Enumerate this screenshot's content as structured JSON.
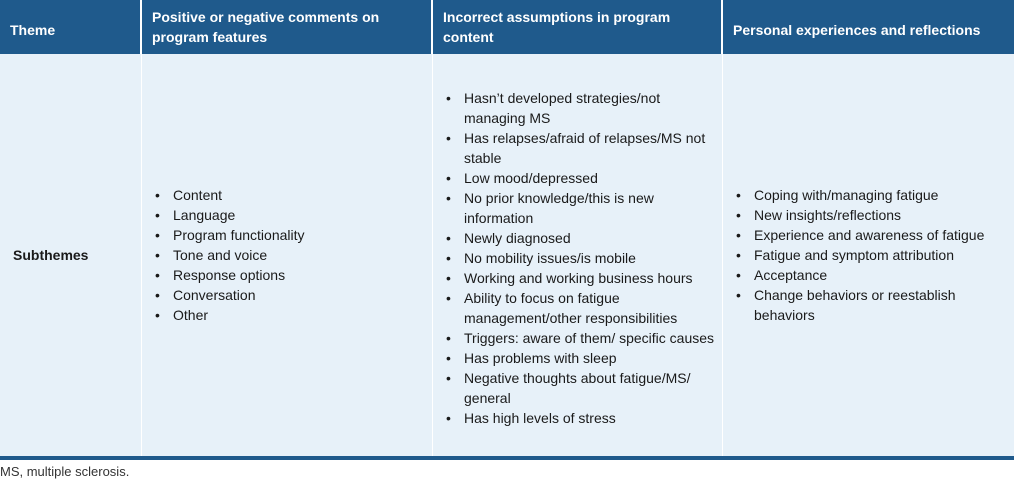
{
  "table": {
    "headers": [
      "Theme",
      "Positive or negative comments on program features",
      "Incorrect assumptions in program content",
      "Personal experiences and reflections"
    ],
    "row_label": "Subthemes",
    "program_features": [
      "Content",
      "Language",
      "Program functionality",
      "Tone and voice",
      "Response options",
      "Conversation",
      "Other"
    ],
    "incorrect_assumptions": [
      "Hasn’t developed strategies/not managing MS",
      "Has relapses/afraid of relapses/MS not stable",
      "Low mood/depressed",
      "No prior knowledge/this is new information",
      "Newly diagnosed",
      "No mobility issues/is mobile",
      "Working and working business hours",
      "Ability to focus on fatigue management/other responsibilities",
      "Triggers: aware of them/ specific causes",
      "Has problems with sleep",
      "Negative thoughts about fatigue/MS/ general",
      "Has high levels of stress"
    ],
    "personal_experiences": [
      "Coping with/managing fatigue",
      "New insights/reflections",
      "Experience and awareness of fatigue",
      "Fatigue and symptom attribution",
      "Acceptance",
      "Change behaviors or reestablish behaviors"
    ]
  },
  "footnote": "MS, multiple sclerosis.",
  "colors": {
    "header_bg": "#1f5a8c",
    "body_bg": "#e7f1f9"
  }
}
